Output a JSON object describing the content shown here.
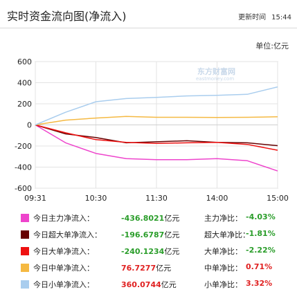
{
  "header": {
    "title": "实时资金流向图(净流入)",
    "update_label": "更新时间",
    "update_time": "15:44"
  },
  "unit_label": "单位:亿元",
  "watermark": {
    "line1": "东方财富网",
    "line2": "eastmoney.com"
  },
  "colors": {
    "main": "#ee44cc",
    "super": "#660000",
    "large": "#ee1111",
    "medium": "#f5b942",
    "small": "#a9cdee"
  },
  "chart_data": {
    "type": "line",
    "x": [
      "09:31",
      "10:00",
      "10:30",
      "11:00",
      "11:30",
      "13:30",
      "14:00",
      "14:30",
      "15:00"
    ],
    "x_ticks": [
      "09:31",
      "10:30",
      "11:30",
      "14:00",
      "15:00"
    ],
    "ylim": [
      -600,
      600
    ],
    "y_ticks": [
      "600",
      "400",
      "200",
      "0",
      "-200",
      "-400",
      "-600"
    ],
    "grid": true,
    "series": [
      {
        "key": "main",
        "values": [
          0,
          -170,
          -270,
          -320,
          -330,
          -330,
          -320,
          -340,
          -437
        ]
      },
      {
        "key": "super",
        "values": [
          0,
          -85,
          -120,
          -170,
          -160,
          -150,
          -165,
          -170,
          -197
        ]
      },
      {
        "key": "large",
        "values": [
          0,
          -75,
          -140,
          -165,
          -175,
          -170,
          -165,
          -185,
          -240
        ]
      },
      {
        "key": "medium",
        "values": [
          0,
          45,
          65,
          80,
          72,
          72,
          70,
          72,
          77
        ]
      },
      {
        "key": "small",
        "values": [
          0,
          120,
          220,
          250,
          260,
          275,
          280,
          290,
          360
        ]
      }
    ]
  },
  "legend": [
    {
      "key": "main",
      "label": "今日主力净流入：",
      "value": "-436.8021",
      "value_unit": "亿元",
      "value_sign": "neg",
      "ratio_label": "主力净比：",
      "ratio": "-4.03%",
      "ratio_sign": "neg"
    },
    {
      "key": "super",
      "label": "今日超大单净流入：",
      "value": "-196.6787",
      "value_unit": "亿元",
      "value_sign": "neg",
      "ratio_label": "超大单净比：",
      "ratio": "-1.81%",
      "ratio_sign": "neg"
    },
    {
      "key": "large",
      "label": "今日大单净流入：",
      "value": "-240.1234",
      "value_unit": "亿元",
      "value_sign": "neg",
      "ratio_label": "大单净比：",
      "ratio": "-2.22%",
      "ratio_sign": "neg"
    },
    {
      "key": "medium",
      "label": "今日中单净流入：",
      "value": "76.7277",
      "value_unit": "亿元",
      "value_sign": "pos",
      "ratio_label": "中单净比：",
      "ratio": "0.71%",
      "ratio_sign": "pos"
    },
    {
      "key": "small",
      "label": "今日小单净流入：",
      "value": "360.0744",
      "value_unit": "亿元",
      "value_sign": "pos",
      "ratio_label": "小单净比：",
      "ratio": "3.32%",
      "ratio_sign": "pos"
    }
  ]
}
